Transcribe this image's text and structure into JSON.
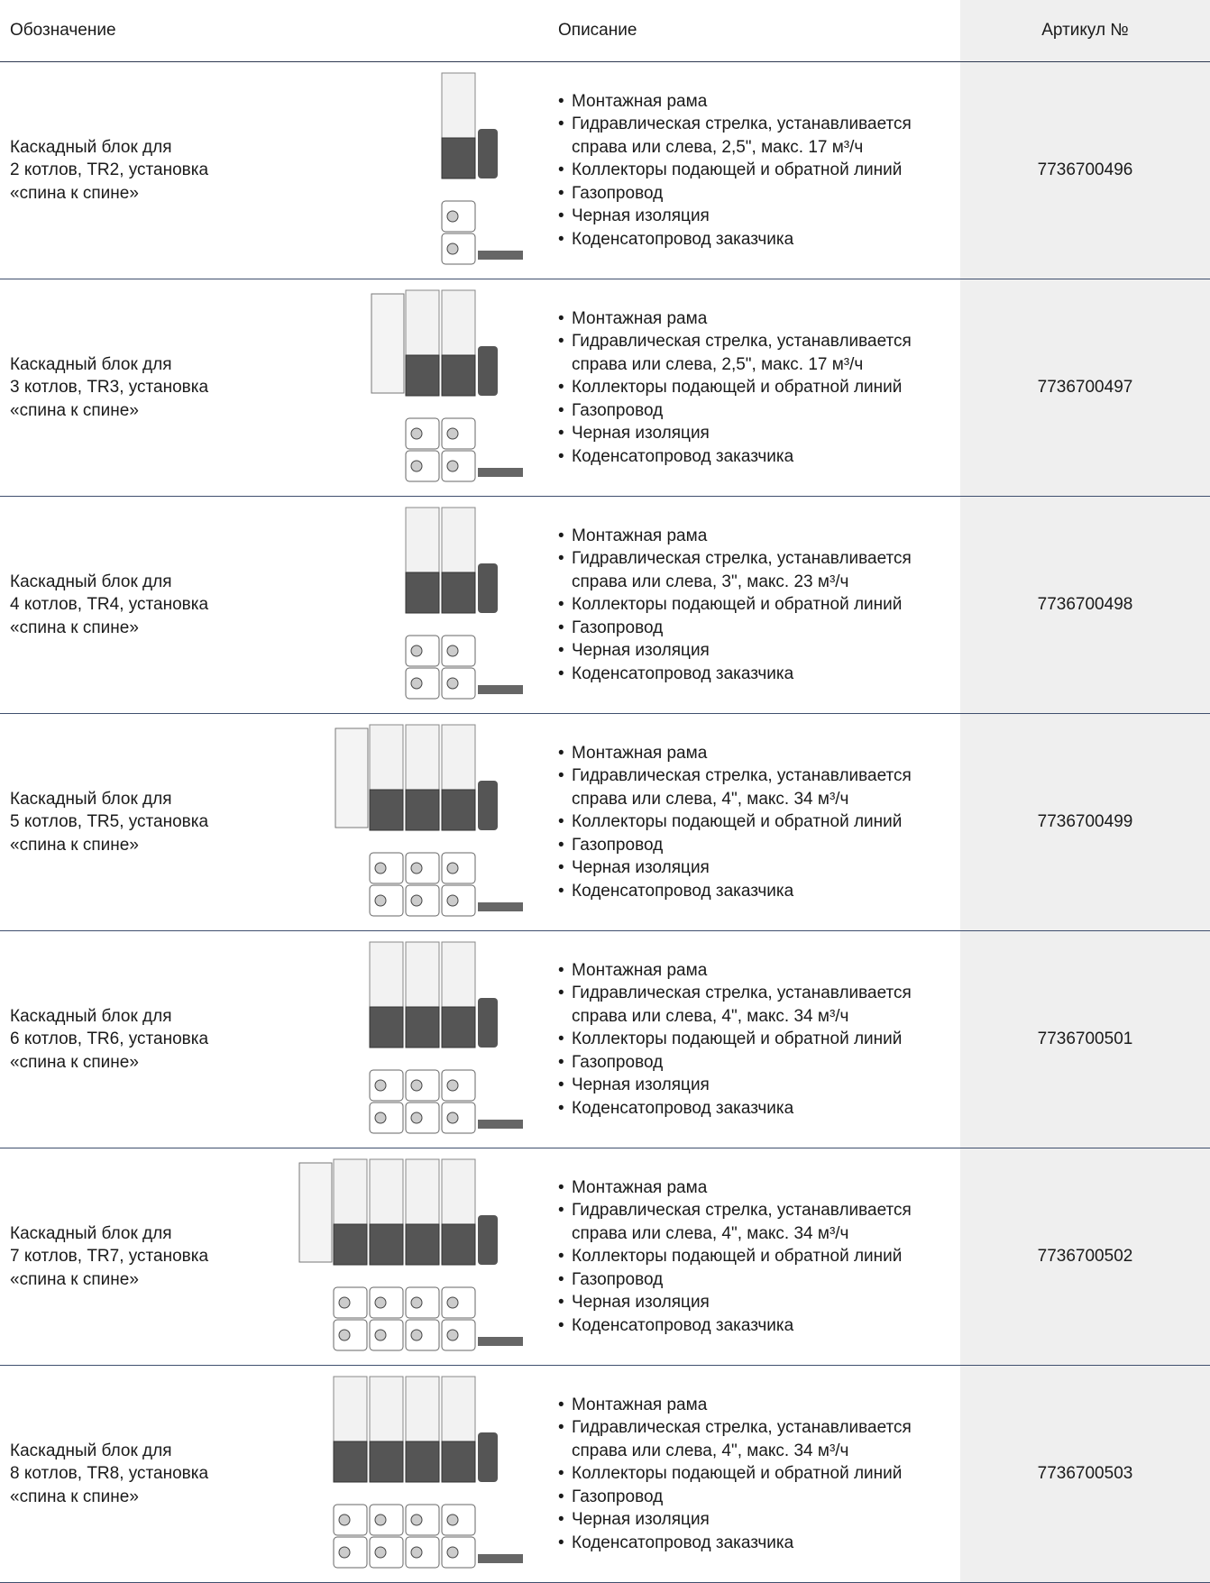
{
  "header": {
    "designation": "Обозначение",
    "description": "Описание",
    "article": "Артикул №"
  },
  "rows": [
    {
      "designation": [
        "Каскадный блок для",
        "2 котлов, TR2, установка",
        "«спина к спине»"
      ],
      "description": [
        "Монтажная рама",
        "Гидравлическая стрелка, устанавливается справа или слева, 2,5\", макс. 17 м³/ч",
        "Коллекторы подающей и обратной линий",
        "Газопровод",
        "Черная изоляция",
        "Коденсатопровод заказчика"
      ],
      "article": "7736700496"
    },
    {
      "designation": [
        "Каскадный блок для",
        "3 котлов, TR3, установка",
        "«спина к спине»"
      ],
      "description": [
        "Монтажная рама",
        "Гидравлическая стрелка, устанавливается справа или слева, 2,5\", макс. 17 м³/ч",
        "Коллекторы подающей и обратной линий",
        "Газопровод",
        "Черная изоляция",
        "Коденсатопровод заказчика"
      ],
      "article": "7736700497"
    },
    {
      "designation": [
        "Каскадный блок для",
        "4 котлов, TR4, установка",
        "«спина к спине»"
      ],
      "description": [
        "Монтажная рама",
        "Гидравлическая стрелка, устанавливается справа или слева, 3\", макс. 23 м³/ч",
        "Коллекторы подающей и обратной линий",
        "Газопровод",
        "Черная изоляция",
        "Коденсатопровод заказчика"
      ],
      "article": "7736700498"
    },
    {
      "designation": [
        "Каскадный блок для",
        "5 котлов, TR5, установка",
        "«спина к спине»"
      ],
      "description": [
        "Монтажная рама",
        "Гидравлическая стрелка, устанавливается справа или слева, 4\", макс. 34 м³/ч",
        "Коллекторы подающей и обратной линий",
        "Газопровод",
        "Черная изоляция",
        "Коденсатопровод заказчика"
      ],
      "article": "7736700499"
    },
    {
      "designation": [
        "Каскадный блок для",
        "6 котлов, TR6, установка",
        "«спина к спине»"
      ],
      "description": [
        "Монтажная рама",
        "Гидравлическая стрелка, устанавливается справа или слева, 4\", макс. 34 м³/ч",
        "Коллекторы подающей и обратной линий",
        "Газопровод",
        "Черная изоляция",
        "Коденсатопровод заказчика"
      ],
      "article": "7736700501"
    },
    {
      "designation": [
        "Каскадный блок для",
        "7 котлов, TR7, установка",
        "«спина к спине»"
      ],
      "description": [
        "Монтажная рама",
        "Гидравлическая стрелка, устанавливается справа или слева, 4\", макс. 34 м³/ч",
        "Коллекторы подающей и обратной линий",
        "Газопровод",
        "Черная изоляция",
        "Коденсатопровод заказчика"
      ],
      "article": "7736700502"
    },
    {
      "designation": [
        "Каскадный блок для",
        "8 котлов, TR8, установка",
        "«спина к спине»"
      ],
      "description": [
        "Монтажная рама",
        "Гидравлическая стрелка, устанавливается справа или слева, 4\", макс. 34 м³/ч",
        "Коллекторы подающей и обратной линий",
        "Газопровод",
        "Черная изоляция",
        "Коденсатопровод заказчика"
      ],
      "article": "7736700503"
    }
  ]
}
